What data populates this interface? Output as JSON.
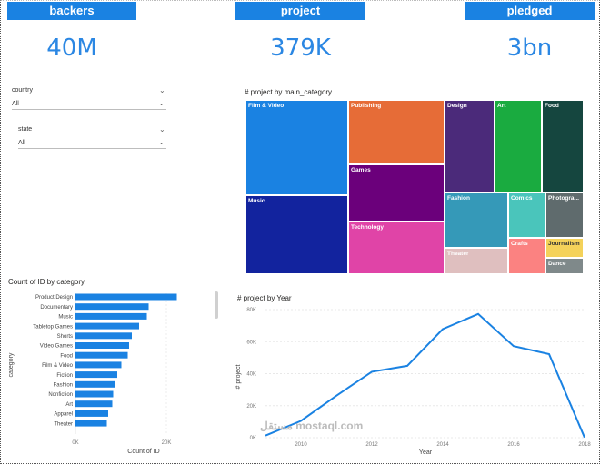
{
  "kpis": [
    {
      "header": "backers",
      "value": "40M"
    },
    {
      "header": "project",
      "value": "379K"
    },
    {
      "header": "pledged",
      "value": "3bn"
    }
  ],
  "slicers": [
    {
      "label": "country",
      "value": "All"
    },
    {
      "label": "state",
      "value": "All"
    }
  ],
  "treemap": {
    "title": "# project by main_category",
    "cells": [
      {
        "label": "Film & Video",
        "color": "#1a82e2"
      },
      {
        "label": "Music",
        "color": "#12239e"
      },
      {
        "label": "Publishing",
        "color": "#e66c37"
      },
      {
        "label": "Games",
        "color": "#6b007b"
      },
      {
        "label": "Technology",
        "color": "#e044a7"
      },
      {
        "label": "Design",
        "color": "#4b2a7a"
      },
      {
        "label": "Art",
        "color": "#1aab40"
      },
      {
        "label": "Food",
        "color": "#15463f"
      },
      {
        "label": "Fashion",
        "color": "#3599b8"
      },
      {
        "label": "Comics",
        "color": "#4ac5bb"
      },
      {
        "label": "Photogra...",
        "color": "#5f6b6d"
      },
      {
        "label": "Theater",
        "color": "#dfbfbf"
      },
      {
        "label": "Crafts",
        "color": "#fb8281"
      },
      {
        "label": "Journalism",
        "color": "#f4d25a"
      },
      {
        "label": "Dance",
        "color": "#7f898a"
      }
    ]
  },
  "category_chart": {
    "title": "Count of ID by category",
    "xlabel": "Count of ID",
    "ylabel": "category",
    "xticks": [
      "0K",
      "20K"
    ]
  },
  "year_chart": {
    "title": "# project by Year",
    "xlabel": "Year",
    "ylabel": "# project",
    "yticks": [
      "80K",
      "60K",
      "40K",
      "20K",
      "0K"
    ],
    "xticks": [
      "2010",
      "2012",
      "2014",
      "2016",
      "2018"
    ]
  },
  "watermark": "مستقل mostaql.com",
  "chart_data": [
    {
      "type": "bar",
      "title": "Count of ID by category",
      "xlabel": "Count of ID",
      "ylabel": "category",
      "categories": [
        "Product Design",
        "Documentary",
        "Music",
        "Tabletop Games",
        "Shorts",
        "Video Games",
        "Food",
        "Film & Video",
        "Fiction",
        "Fashion",
        "Nonfiction",
        "Art",
        "Apparel",
        "Theater"
      ],
      "values": [
        22300,
        16100,
        15700,
        14000,
        12400,
        11800,
        11500,
        10100,
        9200,
        8600,
        8300,
        8100,
        7200,
        6900
      ],
      "xlim": [
        0,
        28000
      ]
    },
    {
      "type": "line",
      "title": "# project by Year",
      "xlabel": "Year",
      "ylabel": "# project",
      "x": [
        2009,
        2010,
        2011,
        2012,
        2013,
        2014,
        2015,
        2016,
        2017,
        2018
      ],
      "values": [
        1300,
        10500,
        26200,
        41200,
        44900,
        67800,
        77300,
        57200,
        52200,
        150
      ],
      "ylim": [
        0,
        80000
      ]
    },
    {
      "type": "treemap",
      "title": "# project by main_category",
      "categories": [
        "Film & Video",
        "Music",
        "Publishing",
        "Games",
        "Technology",
        "Design",
        "Art",
        "Food",
        "Fashion",
        "Comics",
        "Photogra...",
        "Theater",
        "Crafts",
        "Journalism",
        "Dance"
      ],
      "values": [
        63600,
        51900,
        39900,
        35200,
        32600,
        30100,
        28200,
        24600,
        22800,
        10800,
        10800,
        10900,
        8800,
        4750,
        3800
      ]
    }
  ]
}
